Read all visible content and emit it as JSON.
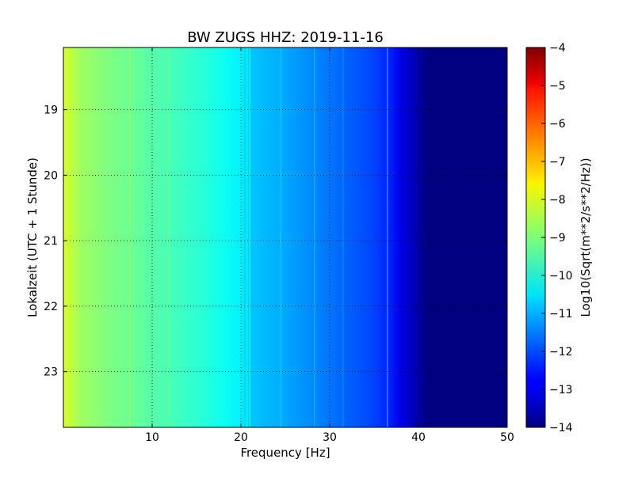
{
  "chart_data": {
    "type": "heatmap",
    "title": "BW ZUGS HHZ: 2019-11-16",
    "xlabel": "Frequency [Hz]",
    "ylabel": "Lokalzeit (UTC + 1 Stunde)",
    "xlim": [
      0,
      50
    ],
    "ylim": [
      18.05,
      23.85
    ],
    "y_inverted": true,
    "grid": true,
    "x_ticks": [
      {
        "value": 10,
        "label": "10"
      },
      {
        "value": 20,
        "label": "20"
      },
      {
        "value": 30,
        "label": "30"
      },
      {
        "value": 40,
        "label": "40"
      },
      {
        "value": 50,
        "label": "50"
      }
    ],
    "y_ticks": [
      {
        "value": 19,
        "label": "19"
      },
      {
        "value": 20,
        "label": "20"
      },
      {
        "value": 21,
        "label": "21"
      },
      {
        "value": 22,
        "label": "22"
      },
      {
        "value": 23,
        "label": "23"
      }
    ],
    "colormap": "jet",
    "colorbar": {
      "label": "Log10(Sqrt(m**2/s**2/Hz))",
      "range": [
        -14,
        -4
      ],
      "ticks": [
        {
          "value": -4,
          "label": "−4"
        },
        {
          "value": -5,
          "label": "−5"
        },
        {
          "value": -6,
          "label": "−6"
        },
        {
          "value": -7,
          "label": "−7"
        },
        {
          "value": -8,
          "label": "−8"
        },
        {
          "value": -9,
          "label": "−9"
        },
        {
          "value": -10,
          "label": "−10"
        },
        {
          "value": -11,
          "label": "−11"
        },
        {
          "value": -12,
          "label": "−12"
        },
        {
          "value": -13,
          "label": "−13"
        },
        {
          "value": -14,
          "label": "−14"
        }
      ]
    },
    "spectrum_profile": [
      {
        "freq": 0,
        "value": -8.1
      },
      {
        "freq": 2,
        "value": -8.7
      },
      {
        "freq": 5,
        "value": -9.0
      },
      {
        "freq": 10,
        "value": -9.4
      },
      {
        "freq": 15,
        "value": -9.8
      },
      {
        "freq": 18,
        "value": -10.1
      },
      {
        "freq": 20,
        "value": -10.4
      },
      {
        "freq": 21,
        "value": -10.8
      },
      {
        "freq": 25,
        "value": -11.1
      },
      {
        "freq": 30,
        "value": -11.6
      },
      {
        "freq": 35,
        "value": -12.1
      },
      {
        "freq": 37,
        "value": -12.5
      },
      {
        "freq": 38,
        "value": -13.0
      },
      {
        "freq": 40,
        "value": -13.6
      },
      {
        "freq": 41,
        "value": -14.0
      },
      {
        "freq": 50,
        "value": -14.0
      }
    ],
    "spectral_lines": [
      {
        "freq": 7.5,
        "value": -8.7
      },
      {
        "freq": 11.8,
        "value": -9.1
      },
      {
        "freq": 20.7,
        "value": -10.0
      },
      {
        "freq": 21.0,
        "value": -9.9
      },
      {
        "freq": 24.5,
        "value": -10.6
      },
      {
        "freq": 28.3,
        "value": -10.9
      },
      {
        "freq": 31.5,
        "value": -11.3
      },
      {
        "freq": 36.5,
        "value": -10.8
      }
    ]
  }
}
